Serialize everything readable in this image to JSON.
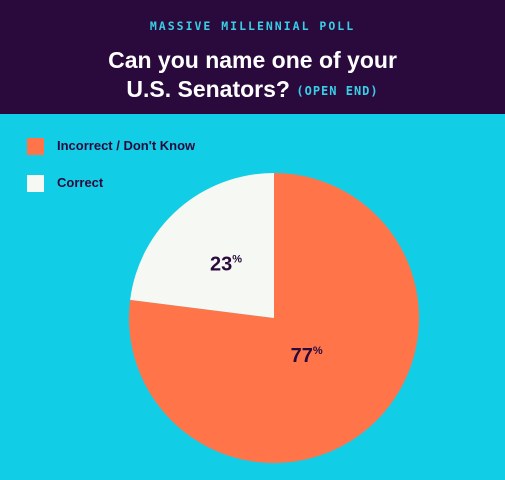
{
  "header": {
    "kicker": "MASSIVE MILLENNIAL POLL",
    "title_line1": "Can you name one of your",
    "title_line2": "U.S. Senators?",
    "title_note": "(OPEN END)"
  },
  "colors": {
    "incorrect": "#ff7549",
    "correct": "#f6f9f3",
    "header_bg": "#2a0a3c",
    "background": "#12cde6"
  },
  "chart_data": {
    "type": "pie",
    "title": "Can you name one of your U.S. Senators? (OPEN END)",
    "legend_position": "top-left",
    "slices": [
      {
        "label": "Incorrect / Don't Know",
        "value": 77,
        "display": "77",
        "unit": "%",
        "color": "#ff7549"
      },
      {
        "label": "Correct",
        "value": 23,
        "display": "23",
        "unit": "%",
        "color": "#f6f9f3"
      }
    ]
  }
}
